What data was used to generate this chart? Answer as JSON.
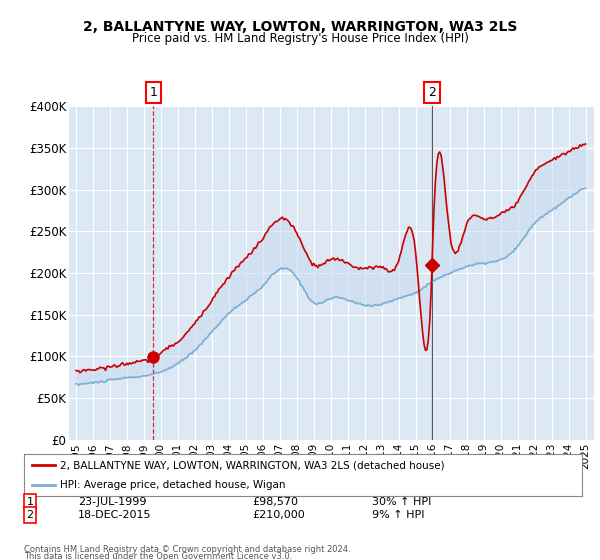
{
  "title": "2, BALLANTYNE WAY, LOWTON, WARRINGTON, WA3 2LS",
  "subtitle": "Price paid vs. HM Land Registry's House Price Index (HPI)",
  "ylim": [
    0,
    400000
  ],
  "yticks": [
    0,
    50000,
    100000,
    150000,
    200000,
    250000,
    300000,
    350000,
    400000
  ],
  "ytick_labels": [
    "£0",
    "£50K",
    "£100K",
    "£150K",
    "£200K",
    "£250K",
    "£300K",
    "£350K",
    "£400K"
  ],
  "sale1": {
    "date": 1999.56,
    "price": 98570,
    "label": "1",
    "date_str": "23-JUL-1999",
    "price_str": "£98,570",
    "hpi_str": "30% ↑ HPI"
  },
  "sale2": {
    "date": 2015.97,
    "price": 210000,
    "label": "2",
    "date_str": "18-DEC-2015",
    "price_str": "£210,000",
    "hpi_str": "9% ↑ HPI"
  },
  "legend_line1": "2, BALLANTYNE WAY, LOWTON, WARRINGTON, WA3 2LS (detached house)",
  "legend_line2": "HPI: Average price, detached house, Wigan",
  "footer1": "Contains HM Land Registry data © Crown copyright and database right 2024.",
  "footer2": "This data is licensed under the Open Government Licence v3.0.",
  "bg_color": "#dce9f5",
  "red_color": "#cc0000",
  "blue_color": "#7bafd4",
  "fill_color": "#c5d8ee",
  "background": "#ffffff",
  "grid_color": "#ffffff",
  "sale1_date_num": 1999.56,
  "sale2_date_num": 2015.97
}
